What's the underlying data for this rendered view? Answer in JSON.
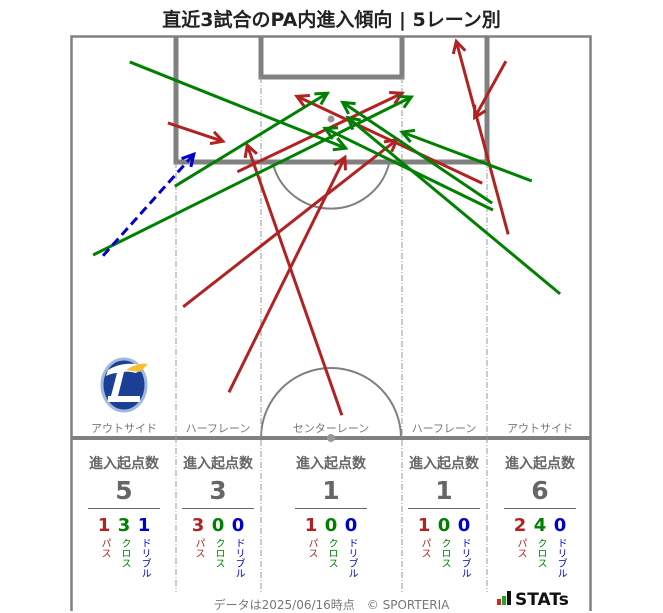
{
  "title": "直近3試合のPA内進入傾向 | 5レーン別",
  "colors": {
    "pass": "#b22222",
    "cross": "#008000",
    "dribble": "#0000cd",
    "pitch_line": "#808080"
  },
  "chart_data": {
    "type": "pitch-arrows",
    "units": "metres (x across pitch 0-68, y from goal line)",
    "arrows": [
      {
        "type": "pass",
        "from": [
          12.7,
          11.4
        ],
        "to": [
          19.9,
          13.8
        ]
      },
      {
        "type": "pass",
        "from": [
          21.8,
          17.8
        ],
        "to": [
          43.4,
          7.5
        ]
      },
      {
        "type": "pass",
        "from": [
          53.9,
          19.3
        ],
        "to": [
          29.6,
          7.9
        ]
      },
      {
        "type": "pass",
        "from": [
          35.5,
          49.7
        ],
        "to": [
          23.1,
          14.3
        ]
      },
      {
        "type": "pass",
        "from": [
          20.7,
          46.7
        ],
        "to": [
          35.9,
          15.9
        ]
      },
      {
        "type": "pass",
        "from": [
          14.7,
          35.5
        ],
        "to": [
          42.7,
          13.6
        ]
      },
      {
        "type": "pass",
        "from": [
          57.3,
          26.0
        ],
        "to": [
          50.5,
          0.7
        ]
      },
      {
        "type": "pass",
        "from": [
          57.0,
          3.3
        ],
        "to": [
          52.9,
          10.7
        ]
      },
      {
        "type": "cross",
        "from": [
          7.7,
          3.4
        ],
        "to": [
          36.0,
          14.7
        ]
      },
      {
        "type": "cross",
        "from": [
          13.6,
          19.7
        ],
        "to": [
          33.6,
          7.5
        ]
      },
      {
        "type": "cross",
        "from": [
          2.9,
          28.7
        ],
        "to": [
          44.6,
          8.0
        ]
      },
      {
        "type": "cross",
        "from": [
          60.4,
          19.0
        ],
        "to": [
          43.4,
          12.6
        ]
      },
      {
        "type": "cross",
        "from": [
          55.2,
          21.9
        ],
        "to": [
          35.6,
          8.7
        ]
      },
      {
        "type": "cross",
        "from": [
          55.3,
          22.8
        ],
        "to": [
          33.3,
          12.1
        ]
      },
      {
        "type": "cross",
        "from": [
          64.1,
          33.8
        ],
        "to": [
          36.3,
          10.7
        ]
      },
      {
        "type": "dribble",
        "from": [
          4.2,
          28.8
        ],
        "to": [
          16.1,
          15.5
        ]
      }
    ]
  },
  "lanes": [
    {
      "label": "アウトサイド",
      "heading": "進入起点数",
      "total": "5",
      "pass": "1",
      "cross": "3",
      "dribble": "1"
    },
    {
      "label": "ハーフレーン",
      "heading": "進入起点数",
      "total": "3",
      "pass": "3",
      "cross": "0",
      "dribble": "0"
    },
    {
      "label": "センターレーン",
      "heading": "進入起点数",
      "total": "1",
      "pass": "1",
      "cross": "0",
      "dribble": "0"
    },
    {
      "label": "ハーフレーン",
      "heading": "進入起点数",
      "total": "1",
      "pass": "1",
      "cross": "0",
      "dribble": "0"
    },
    {
      "label": "アウトサイド",
      "heading": "進入起点数",
      "total": "6",
      "pass": "2",
      "cross": "4",
      "dribble": "0"
    }
  ],
  "kinds": {
    "pass": "パス",
    "cross": "クロス",
    "dribble": "ドリブル"
  },
  "logo": {
    "icon": "club-crest-icon",
    "text": "TRINITA 1994"
  },
  "footer": "データは2025/06/16時点　© SPORTERIA",
  "brand": "STATs"
}
